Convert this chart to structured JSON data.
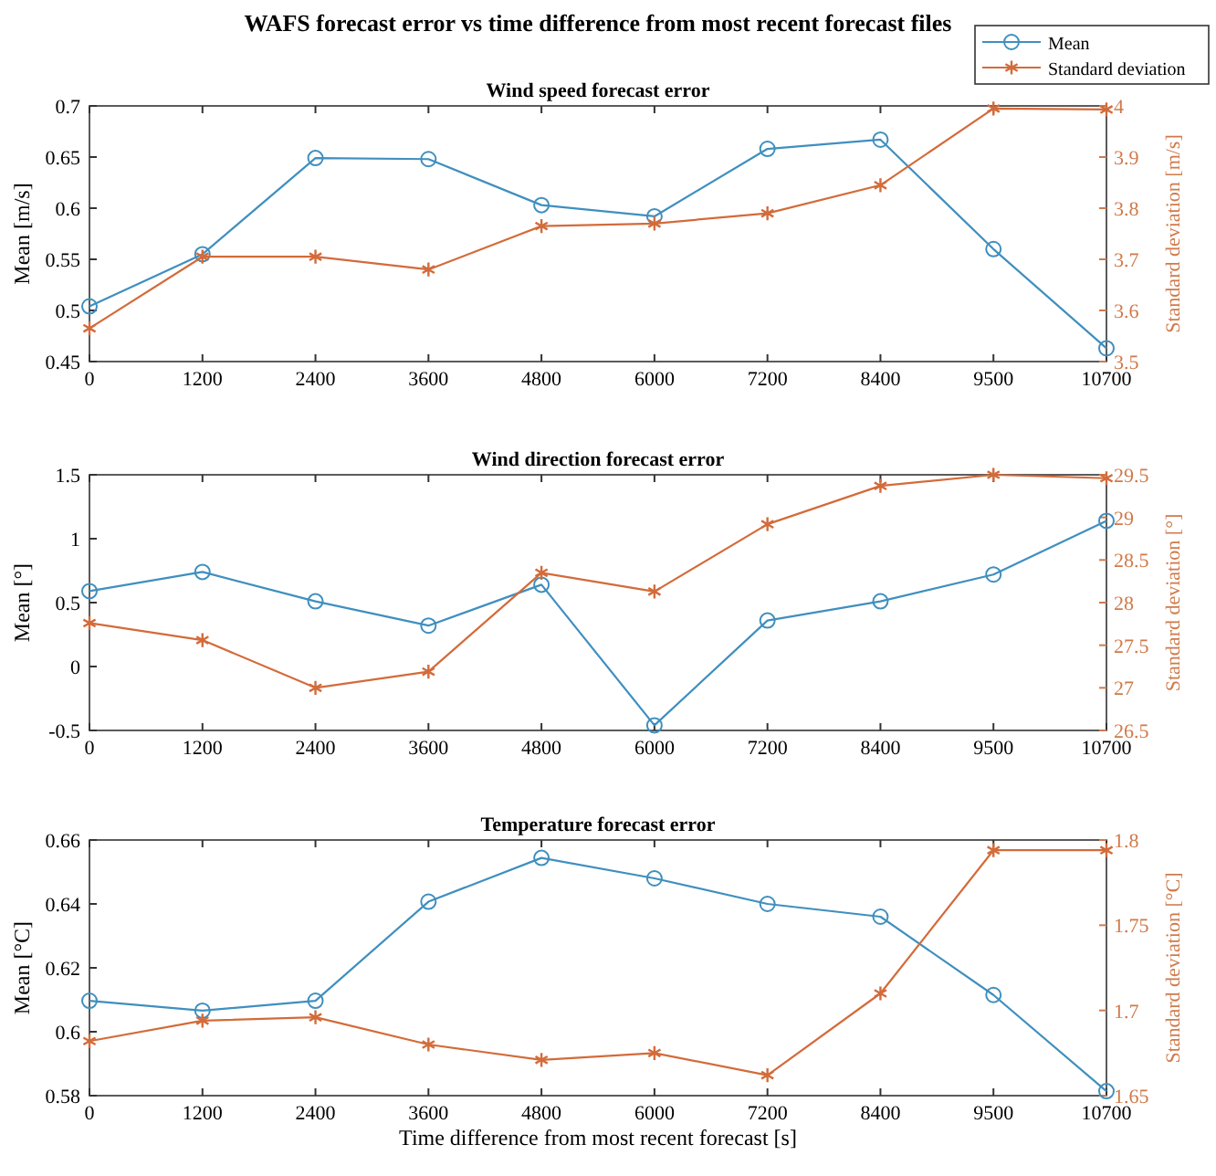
{
  "chart_data": [
    {
      "type": "line",
      "title": "WAFS forecast error vs time difference from most recent forecast files",
      "subtitle": "Wind speed forecast error",
      "ylabel": "Mean [m/s]",
      "y2label": "Standard deviation [m/s]",
      "categories": [
        "0",
        "1200",
        "2400",
        "3600",
        "4800",
        "6000",
        "7200",
        "8400",
        "9500",
        "10700"
      ],
      "legend": "top right",
      "series": [
        {
          "name": "Mean",
          "color": "#3f8fbf",
          "marker": "circle",
          "values": [
            0.504,
            0.555,
            0.649,
            0.648,
            0.603,
            0.592,
            0.658,
            0.667,
            0.56,
            0.463
          ]
        },
        {
          "name": "Standard deviation",
          "color": "#d36b3a",
          "marker": "cross",
          "axis": "y2",
          "values": [
            3.565,
            3.705,
            3.705,
            3.68,
            3.765,
            3.77,
            3.79,
            3.845,
            3.995,
            3.993
          ]
        }
      ],
      "ylim": [
        0.45,
        0.7
      ],
      "yticks": [
        0.45,
        0.5,
        0.55,
        0.6,
        0.65,
        0.7
      ],
      "y2lim": [
        3.5,
        4
      ],
      "y2ticks": [
        3.5,
        3.6,
        3.7,
        3.8,
        3.9,
        4
      ]
    },
    {
      "type": "line",
      "title": "Wind direction forecast error",
      "ylabel": "Mean [°]",
      "y2label": "Standard deviation [°]",
      "categories": [
        "0",
        "1200",
        "2400",
        "3600",
        "4800",
        "6000",
        "7200",
        "8400",
        "9500",
        "10700"
      ],
      "series": [
        {
          "color": "#3f8fbf",
          "marker": "circle",
          "values": [
            0.59,
            0.74,
            0.51,
            0.32,
            0.64,
            -0.46,
            0.36,
            0.51,
            0.72,
            1.14
          ]
        },
        {
          "color": "#d36b3a",
          "marker": "cross",
          "axis": "y2",
          "values": [
            27.76,
            27.56,
            27.0,
            27.19,
            28.35,
            28.13,
            28.92,
            29.37,
            29.5,
            29.46
          ]
        }
      ],
      "ylim": [
        -0.5,
        1.5
      ],
      "yticks": [
        -0.5,
        0,
        0.5,
        1,
        1.5
      ],
      "y2lim": [
        26.5,
        29.5
      ],
      "y2ticks": [
        26.5,
        27,
        27.5,
        28,
        28.5,
        29,
        29.5
      ]
    },
    {
      "type": "line",
      "title": "Temperature forecast error",
      "xlabel": "Time difference from  most recent forecast [s]",
      "ylabel": "Mean [°C]",
      "y2label": "Standard deviation [°C]",
      "categories": [
        "0",
        "1200",
        "2400",
        "3600",
        "4800",
        "6000",
        "7200",
        "8400",
        "9500",
        "10700"
      ],
      "series": [
        {
          "color": "#3f8fbf",
          "marker": "circle",
          "values": [
            0.6097,
            0.6066,
            0.6097,
            0.6407,
            0.6544,
            0.648,
            0.64,
            0.636,
            0.6115,
            0.5814
          ]
        },
        {
          "color": "#d36b3a",
          "marker": "cross",
          "axis": "y2",
          "values": [
            1.682,
            1.694,
            1.696,
            1.68,
            1.671,
            1.675,
            1.662,
            1.71,
            1.794,
            1.794
          ]
        }
      ],
      "ylim": [
        0.58,
        0.66
      ],
      "yticks": [
        0.58,
        0.6,
        0.62,
        0.64,
        0.66
      ],
      "y2lim": [
        1.65,
        1.8
      ],
      "y2ticks": [
        1.65,
        1.7,
        1.75,
        1.8
      ]
    }
  ]
}
